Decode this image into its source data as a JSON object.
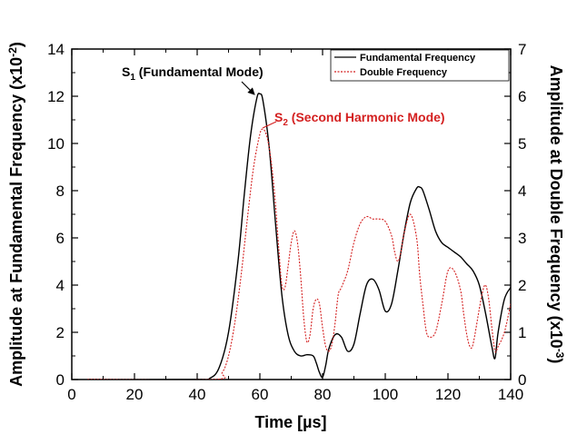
{
  "chart_data": {
    "type": "line",
    "xlabel": "Time [µs]",
    "ylabel_left": "Amplitude at Fundamental Frequency (x10",
    "ylabel_left_exp": "-2",
    "ylabel_left_close": ")",
    "ylabel_right": "Amplitude at Double Frequency (x10",
    "ylabel_right_exp": "-3",
    "ylabel_right_close": ")",
    "xlim": [
      0,
      140
    ],
    "ylim_left": [
      0,
      14
    ],
    "ylim_right": [
      0,
      7
    ],
    "x_ticks": [
      "0",
      "20",
      "40",
      "60",
      "80",
      "100",
      "120",
      "140"
    ],
    "y_ticks_left": [
      "0",
      "2",
      "4",
      "6",
      "8",
      "10",
      "12",
      "14"
    ],
    "y_ticks_right": [
      "0",
      "1",
      "2",
      "3",
      "4",
      "5",
      "6",
      "7"
    ],
    "legend_position": "top-right",
    "annotations": [
      {
        "id": "s1",
        "main": "S",
        "sub": "1",
        "rest": " (Fundamental Mode)",
        "color": "#000000"
      },
      {
        "id": "s2",
        "main": "S",
        "sub": "2",
        "rest": " (Second Harmonic Mode)",
        "color": "#d42020"
      }
    ],
    "series": [
      {
        "name": "Fundamental Frequency",
        "axis": "left",
        "color": "#000000",
        "dash": "solid",
        "x": [
          5,
          40,
          44,
          47,
          50,
          53,
          55,
          57,
          59,
          60,
          61,
          63,
          65,
          67,
          69,
          71,
          73,
          75,
          77,
          78,
          79,
          80,
          81,
          82,
          84,
          86,
          88,
          90,
          92,
          94,
          96,
          98,
          100,
          102,
          104,
          106,
          108,
          110,
          111,
          112,
          114,
          116,
          118,
          120,
          122,
          124,
          126,
          128,
          130,
          132,
          134,
          135,
          136,
          138,
          140
        ],
        "y": [
          0,
          0,
          0.05,
          0.5,
          2.0,
          5.0,
          7.8,
          10.3,
          11.9,
          12.1,
          11.8,
          9.8,
          6.6,
          3.6,
          1.9,
          1.2,
          1.0,
          1.05,
          1.0,
          0.7,
          0.3,
          0.1,
          0.6,
          1.3,
          1.9,
          1.8,
          1.2,
          1.5,
          2.8,
          4.0,
          4.25,
          3.8,
          2.9,
          3.2,
          4.6,
          6.2,
          7.5,
          8.1,
          8.15,
          8.0,
          7.2,
          6.3,
          5.8,
          5.6,
          5.4,
          5.2,
          4.9,
          4.6,
          4.0,
          2.8,
          1.4,
          0.9,
          2.0,
          3.4,
          3.9
        ]
      },
      {
        "name": "Double Frequency",
        "axis": "right",
        "color": "#d42020",
        "dash": "dashed",
        "x": [
          5,
          45,
          48,
          50,
          52,
          54,
          56,
          58,
          60,
          61,
          62,
          63,
          64,
          65,
          66,
          67,
          68,
          69,
          70,
          71,
          72,
          73,
          74,
          75,
          76,
          77,
          78,
          79,
          80,
          81,
          82,
          83,
          84,
          85,
          86,
          88,
          90,
          92,
          94,
          96,
          98,
          100,
          102,
          103,
          104,
          105,
          106,
          108,
          110,
          111,
          112,
          113,
          114,
          116,
          118,
          120,
          122,
          124,
          125,
          126,
          127,
          128,
          130,
          131,
          132,
          133,
          134,
          135,
          136,
          138,
          140
        ],
        "y": [
          0,
          0,
          0.15,
          0.5,
          1.2,
          2.2,
          3.4,
          4.5,
          5.2,
          5.3,
          5.2,
          4.9,
          4.4,
          3.7,
          2.8,
          2.0,
          1.95,
          2.4,
          2.9,
          3.15,
          2.9,
          2.2,
          1.3,
          0.8,
          0.95,
          1.5,
          1.7,
          1.6,
          1.1,
          0.7,
          0.6,
          0.75,
          1.2,
          1.8,
          1.95,
          2.3,
          2.9,
          3.3,
          3.45,
          3.4,
          3.4,
          3.35,
          3.05,
          2.7,
          2.5,
          2.7,
          3.1,
          3.5,
          3.0,
          2.2,
          1.6,
          1.05,
          0.9,
          1.0,
          1.6,
          2.3,
          2.3,
          1.9,
          1.4,
          0.95,
          0.7,
          0.75,
          1.5,
          1.85,
          2.0,
          1.7,
          1.1,
          0.6,
          0.7,
          1.0,
          1.6
        ]
      }
    ]
  }
}
